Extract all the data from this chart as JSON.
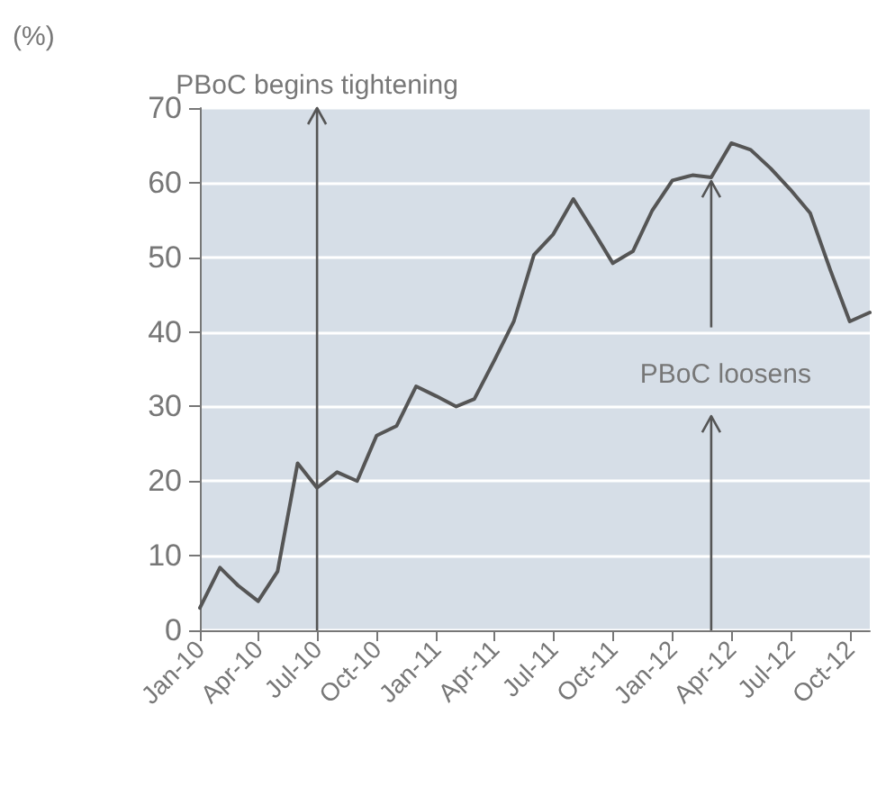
{
  "chart_data": {
    "type": "line",
    "ylabel": "(%)",
    "x": [
      "2010-01",
      "2010-02",
      "2010-03",
      "2010-04",
      "2010-05",
      "2010-06",
      "2010-07",
      "2010-08",
      "2010-09",
      "2010-10",
      "2010-11",
      "2010-12",
      "2011-01",
      "2011-02",
      "2011-03",
      "2011-04",
      "2011-05",
      "2011-06",
      "2011-07",
      "2011-08",
      "2011-09",
      "2011-10",
      "2011-11",
      "2011-12",
      "2012-01",
      "2012-02",
      "2012-03",
      "2012-04",
      "2012-05",
      "2012-06",
      "2012-07",
      "2012-08",
      "2012-09",
      "2012-10",
      "2012-11"
    ],
    "series": [
      {
        "color": "#555555",
        "values": [
          3,
          8.4,
          6,
          3.9,
          7.9,
          22.4,
          19.1,
          21.2,
          20,
          26.1,
          27.4,
          32.7,
          31.4,
          30,
          31,
          36.2,
          41.4,
          50.3,
          53.1,
          57.8,
          53.5,
          49.2,
          50.8,
          56.3,
          60.3,
          61,
          60.7,
          65.3,
          64.4,
          61.9,
          59.1,
          55.9,
          48.3,
          41.4,
          42.6
        ]
      }
    ],
    "xlim": [
      "2010-01",
      "2012-11"
    ],
    "xticks": [
      {
        "value": "2010-01",
        "label": "Jan-10"
      },
      {
        "value": "2010-04",
        "label": "Apr-10"
      },
      {
        "value": "2010-07",
        "label": "Jul-10"
      },
      {
        "value": "2010-10",
        "label": "Oct-10"
      },
      {
        "value": "2011-01",
        "label": "Jan-11"
      },
      {
        "value": "2011-04",
        "label": "Apr-11"
      },
      {
        "value": "2011-07",
        "label": "Jul-11"
      },
      {
        "value": "2011-10",
        "label": "Oct-11"
      },
      {
        "value": "2012-01",
        "label": "Jan-12"
      },
      {
        "value": "2012-04",
        "label": "Apr-12"
      },
      {
        "value": "2012-07",
        "label": "Jul-12"
      },
      {
        "value": "2012-10",
        "label": "Oct-12"
      }
    ],
    "ylim": [
      0,
      70
    ],
    "yticks": [
      0,
      10,
      20,
      30,
      40,
      50,
      60,
      70
    ],
    "ref_lines": [
      {
        "axis": "x",
        "value": "2010-07",
        "label": "PBoC begins tightening",
        "color": "#555555"
      },
      {
        "axis": "x",
        "value": "2012-03",
        "label": "PBoC loosens",
        "color": "#555555"
      }
    ],
    "grid": "y",
    "marker": "none",
    "line_style": "solid"
  }
}
